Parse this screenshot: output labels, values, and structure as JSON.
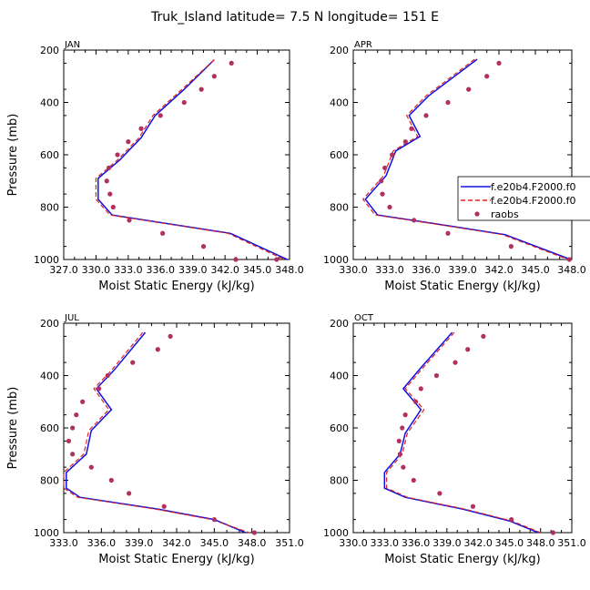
{
  "figure": {
    "title": "Truk_Island   latitude= 7.5 N longitude= 151 E"
  },
  "legend": {
    "entries": [
      {
        "label": "f.e20b4.F2000.f0",
        "color": "#1010e0",
        "style": "solid"
      },
      {
        "label": "f.e20b4.F2000.f0",
        "color": "#e02020",
        "style": "dashed"
      },
      {
        "label": "raobs",
        "color": "#b03060",
        "style": "dot"
      }
    ]
  },
  "chart_data": [
    {
      "type": "line",
      "panel": "JAN",
      "xlabel": "Moist Static Energy (kJ/kg)",
      "ylabel": "Pressure (mb)",
      "xlim": [
        327.0,
        348.0
      ],
      "ylim": [
        1000,
        200
      ],
      "xtick_labels": [
        "327.0",
        "330.0",
        "333.0",
        "336.0",
        "339.0",
        "342.0",
        "345.0",
        "348.0"
      ],
      "ytick_labels": [
        "200",
        "400",
        "600",
        "800",
        "1000"
      ],
      "series": [
        {
          "name": "f.e20b4.F2000.f0",
          "color": "#1010e0",
          "style": "solid",
          "x": [
            341.0,
            338.2,
            335.5,
            334.2,
            332.2,
            330.2,
            330.2,
            331.5,
            337.0,
            342.5,
            347.8
          ],
          "y": [
            237,
            350,
            450,
            535,
            620,
            690,
            770,
            830,
            865,
            900,
            1000
          ]
        },
        {
          "name": "f.e20b4.F2000.f0",
          "color": "#e02020",
          "style": "dashed",
          "x": [
            341.0,
            338.0,
            335.3,
            334.0,
            332.0,
            330.0,
            330.0,
            331.3,
            336.8,
            342.3,
            347.5
          ],
          "y": [
            237,
            350,
            450,
            535,
            620,
            690,
            770,
            830,
            865,
            900,
            1000
          ]
        },
        {
          "name": "raobs",
          "color": "#b03060",
          "style": "dot",
          "x": [
            342.6,
            341.0,
            339.8,
            338.2,
            336.0,
            334.2,
            333.0,
            332.0,
            331.2,
            331.0,
            331.3,
            331.6,
            333.1,
            336.2,
            340.0,
            343.0,
            346.8
          ],
          "y": [
            250,
            300,
            350,
            400,
            450,
            500,
            550,
            600,
            650,
            700,
            750,
            800,
            850,
            900,
            950,
            1000,
            1000
          ]
        }
      ]
    },
    {
      "type": "line",
      "panel": "APR",
      "xlabel": "Moist Static Energy (kJ/kg)",
      "ylabel": "",
      "xlim": [
        330.0,
        348.0
      ],
      "ylim": [
        1000,
        200
      ],
      "xtick_labels": [
        "330.0",
        "333.0",
        "336.0",
        "339.0",
        "342.0",
        "345.0",
        "348.0"
      ],
      "ytick_labels": [
        "200",
        "400",
        "600",
        "800",
        "1000"
      ],
      "series": [
        {
          "name": "f.e20b4.F2000.f0",
          "color": "#1010e0",
          "style": "solid",
          "x": [
            340.2,
            336.2,
            334.6,
            335.5,
            333.5,
            332.7,
            331.0,
            332.0,
            337.0,
            342.5,
            347.9
          ],
          "y": [
            235,
            375,
            450,
            530,
            585,
            680,
            770,
            830,
            865,
            905,
            1000
          ]
        },
        {
          "name": "f.e20b4.F2000.f0",
          "color": "#e02020",
          "style": "dashed",
          "x": [
            340.0,
            336.0,
            334.4,
            335.3,
            333.3,
            332.5,
            330.8,
            331.8,
            336.8,
            342.3,
            347.7
          ],
          "y": [
            235,
            375,
            450,
            530,
            585,
            680,
            770,
            830,
            865,
            905,
            1000
          ]
        },
        {
          "name": "raobs",
          "color": "#b03060",
          "style": "dot",
          "x": [
            342.0,
            341.0,
            339.5,
            337.8,
            336.0,
            334.8,
            334.3,
            333.2,
            332.6,
            332.3,
            332.4,
            333.0,
            335.0,
            337.8,
            343.0,
            347.8
          ],
          "y": [
            250,
            300,
            350,
            400,
            450,
            500,
            550,
            600,
            650,
            700,
            750,
            800,
            850,
            900,
            950,
            1000
          ]
        }
      ]
    },
    {
      "type": "line",
      "panel": "JUL",
      "xlabel": "Moist Static Energy (kJ/kg)",
      "ylabel": "Pressure (mb)",
      "xlim": [
        333.0,
        351.0
      ],
      "ylim": [
        1000,
        200
      ],
      "xtick_labels": [
        "333.0",
        "336.0",
        "339.0",
        "342.0",
        "345.0",
        "348.0",
        "351.0"
      ],
      "ytick_labels": [
        "200",
        "400",
        "600",
        "800",
        "1000"
      ],
      "series": [
        {
          "name": "f.e20b4.F2000.f0",
          "color": "#1010e0",
          "style": "solid",
          "x": [
            339.5,
            337.0,
            335.6,
            336.8,
            335.2,
            334.8,
            333.2,
            333.2,
            334.3,
            340.5,
            345.0,
            347.5
          ],
          "y": [
            235,
            380,
            450,
            530,
            610,
            700,
            770,
            830,
            865,
            910,
            950,
            1000
          ]
        },
        {
          "name": "f.e20b4.F2000.f0",
          "color": "#e02020",
          "style": "dashed",
          "x": [
            339.3,
            336.8,
            335.4,
            336.6,
            335.0,
            334.6,
            333.0,
            333.0,
            334.1,
            340.3,
            344.8,
            347.8
          ],
          "y": [
            235,
            380,
            450,
            530,
            610,
            700,
            770,
            830,
            865,
            910,
            950,
            1000
          ]
        },
        {
          "name": "raobs",
          "color": "#b03060",
          "style": "dot",
          "x": [
            341.5,
            340.5,
            338.5,
            336.5,
            335.8,
            334.5,
            334.0,
            333.7,
            333.4,
            333.7,
            335.2,
            336.8,
            338.2,
            341.0,
            345.0,
            348.2
          ],
          "y": [
            250,
            300,
            350,
            400,
            450,
            500,
            550,
            600,
            650,
            700,
            750,
            800,
            850,
            900,
            950,
            1000
          ]
        }
      ]
    },
    {
      "type": "line",
      "panel": "OCT",
      "xlabel": "Moist Static Energy (kJ/kg)",
      "ylabel": "",
      "xlim": [
        330.0,
        351.0
      ],
      "ylim": [
        1000,
        200
      ],
      "xtick_labels": [
        "330.0",
        "333.0",
        "336.0",
        "339.0",
        "342.0",
        "345.0",
        "348.0",
        "351.0"
      ],
      "ytick_labels": [
        "200",
        "400",
        "600",
        "800",
        "1000"
      ],
      "series": [
        {
          "name": "f.e20b4.F2000.f0",
          "color": "#1010e0",
          "style": "solid",
          "x": [
            339.5,
            336.5,
            334.8,
            336.5,
            335.0,
            334.5,
            333.0,
            333.0,
            335.0,
            340.5,
            345.0,
            347.8
          ],
          "y": [
            235,
            370,
            450,
            530,
            620,
            700,
            770,
            830,
            865,
            910,
            955,
            1000
          ]
        },
        {
          "name": "f.e20b4.F2000.f0",
          "color": "#e02020",
          "style": "dashed",
          "x": [
            339.7,
            336.7,
            335.0,
            336.8,
            335.2,
            334.7,
            333.2,
            333.2,
            335.2,
            340.7,
            345.2,
            348.0
          ],
          "y": [
            235,
            370,
            450,
            530,
            620,
            700,
            770,
            830,
            865,
            910,
            955,
            1000
          ]
        },
        {
          "name": "raobs",
          "color": "#b03060",
          "style": "dot",
          "x": [
            342.5,
            341.0,
            339.8,
            338.0,
            336.5,
            336.0,
            335.0,
            334.7,
            334.4,
            334.5,
            334.8,
            335.8,
            338.3,
            341.5,
            345.2,
            349.2
          ],
          "y": [
            250,
            300,
            350,
            400,
            450,
            500,
            550,
            600,
            650,
            700,
            750,
            800,
            850,
            900,
            950,
            1000
          ]
        }
      ]
    }
  ]
}
